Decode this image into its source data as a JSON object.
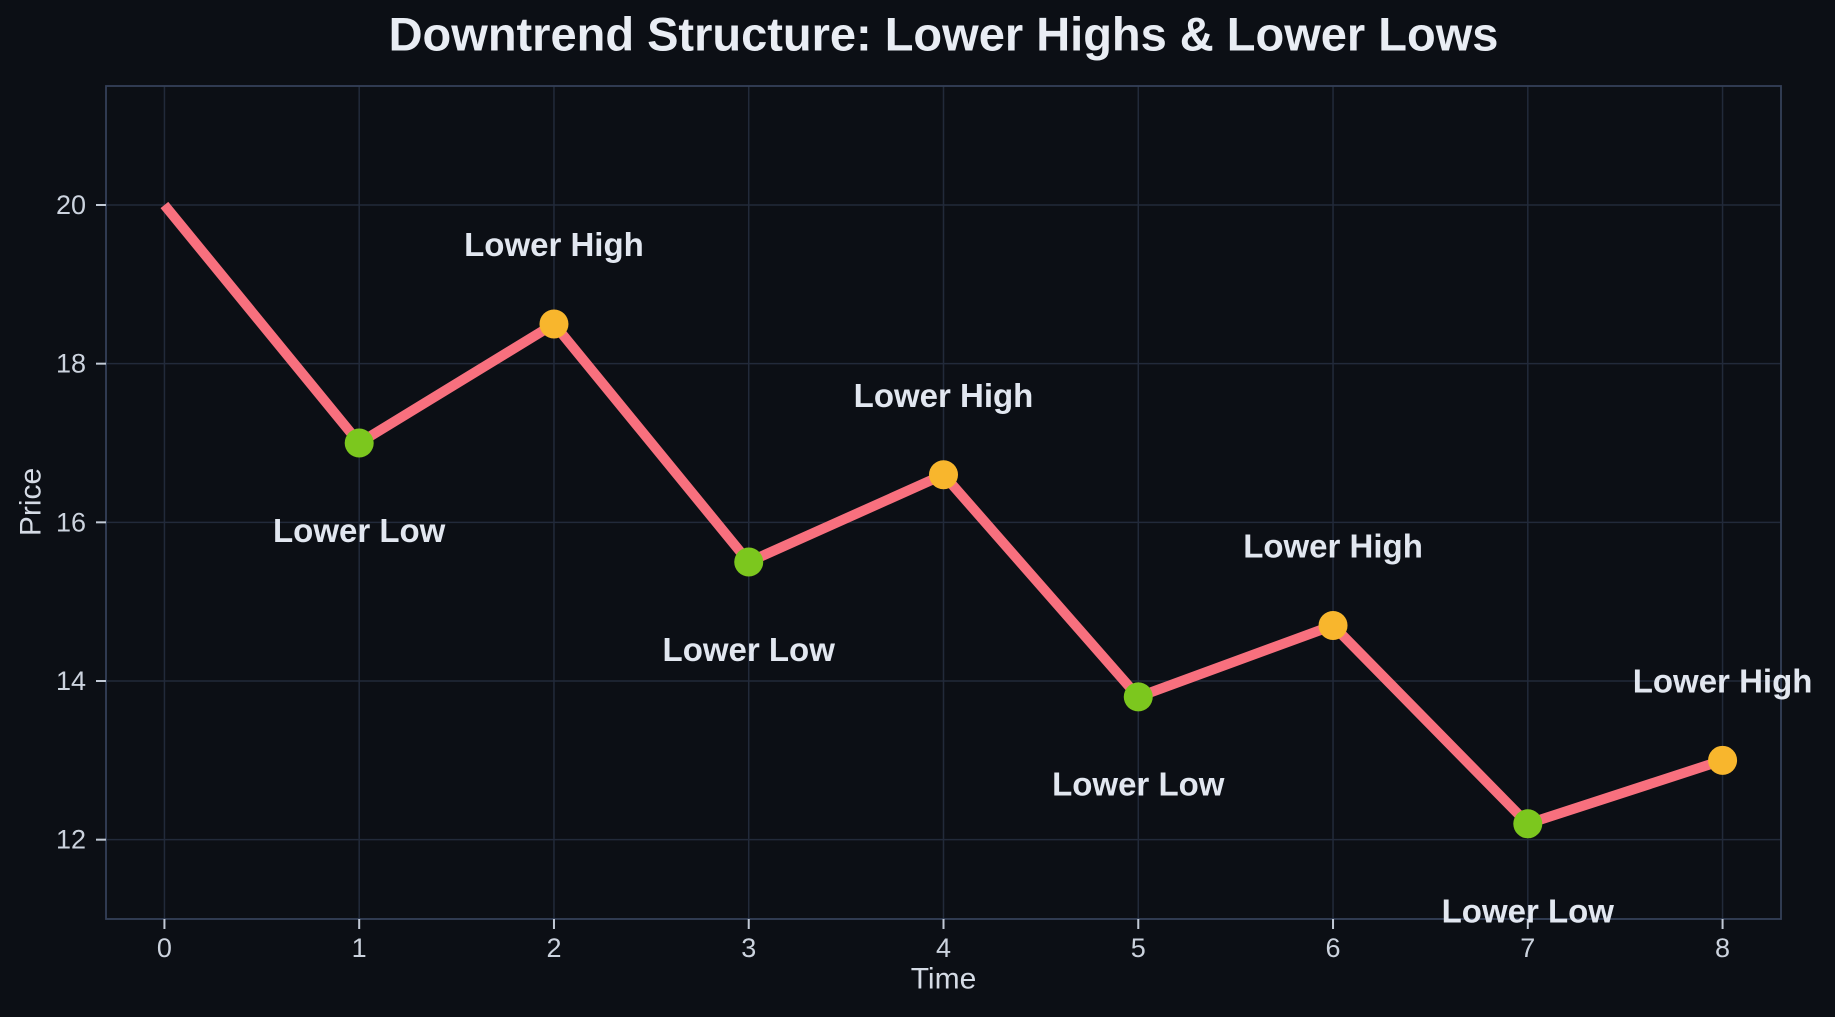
{
  "chart_data": {
    "type": "line",
    "title": "Downtrend Structure: Lower Highs & Lower Lows",
    "xlabel": "Time",
    "ylabel": "Price",
    "x": [
      0,
      1,
      2,
      3,
      4,
      5,
      6,
      7,
      8
    ],
    "y": [
      20,
      17,
      18.5,
      15.5,
      16.6,
      13.8,
      14.7,
      12.2,
      13
    ],
    "points": [
      {
        "x": 0,
        "y": 20,
        "role": "start",
        "label": ""
      },
      {
        "x": 1,
        "y": 17,
        "role": "low",
        "label": "Lower Low"
      },
      {
        "x": 2,
        "y": 18.5,
        "role": "high",
        "label": "Lower High"
      },
      {
        "x": 3,
        "y": 15.5,
        "role": "low",
        "label": "Lower Low"
      },
      {
        "x": 4,
        "y": 16.6,
        "role": "high",
        "label": "Lower High"
      },
      {
        "x": 5,
        "y": 13.8,
        "role": "low",
        "label": "Lower Low"
      },
      {
        "x": 6,
        "y": 14.7,
        "role": "high",
        "label": "Lower High"
      },
      {
        "x": 7,
        "y": 12.2,
        "role": "low",
        "label": "Lower Low"
      },
      {
        "x": 8,
        "y": 13,
        "role": "high",
        "label": "Lower High"
      }
    ],
    "label_offsets": {
      "high": 1.0,
      "low": -1.1
    },
    "x_ticks": [
      0,
      1,
      2,
      3,
      4,
      5,
      6,
      7,
      8
    ],
    "y_ticks": [
      12,
      14,
      16,
      18,
      20
    ],
    "xlim": [
      -0.3,
      8.3
    ],
    "ylim": [
      11.0,
      21.5
    ],
    "grid": true,
    "legend": "none",
    "colors": {
      "background": "#0c0f15",
      "grid": "#222a3a",
      "spine": "#344058",
      "line": "#f8707e",
      "marker_low": "#7cc71e",
      "marker_high": "#f8b62d",
      "title_text": "#e9edf4",
      "axis_text": "#d5dbe5",
      "tick_text": "#ccd3de",
      "annotation_text": "#e2e7f0",
      "tick_mark": "#c2cad6"
    },
    "line_width": 10,
    "marker_radius": 14.5
  }
}
